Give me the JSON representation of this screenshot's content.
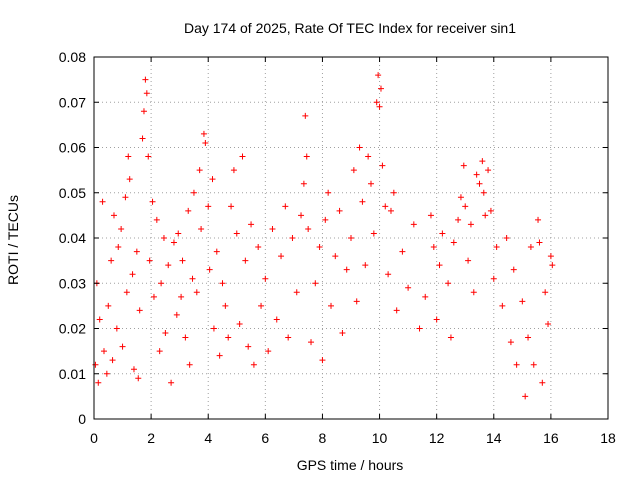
{
  "chart_data": {
    "type": "scatter",
    "title": "Day 174 of 2025, Rate Of TEC Index for receiver sin1",
    "xlabel": "GPS time / hours",
    "ylabel": "ROTI / TECUs",
    "xlim": [
      0,
      18
    ],
    "ylim": [
      0,
      0.08
    ],
    "x_ticks": [
      "0",
      "2",
      "4",
      "6",
      "8",
      "10",
      "12",
      "14",
      "16",
      "18"
    ],
    "y_ticks": [
      "0",
      "0.01",
      "0.02",
      "0.03",
      "0.04",
      "0.05",
      "0.06",
      "0.07",
      "0.08"
    ],
    "grid": true,
    "legend": "none",
    "marker": "+",
    "color": "#ff0000",
    "series": [
      {
        "points": [
          [
            0.05,
            0.012
          ],
          [
            0.1,
            0.03
          ],
          [
            0.15,
            0.008
          ],
          [
            0.2,
            0.022
          ],
          [
            0.3,
            0.048
          ],
          [
            0.35,
            0.015
          ],
          [
            0.45,
            0.01
          ],
          [
            0.5,
            0.025
          ],
          [
            0.6,
            0.035
          ],
          [
            0.65,
            0.013
          ],
          [
            0.7,
            0.045
          ],
          [
            0.8,
            0.02
          ],
          [
            0.85,
            0.038
          ],
          [
            0.95,
            0.042
          ],
          [
            1.0,
            0.016
          ],
          [
            1.1,
            0.049
          ],
          [
            1.15,
            0.028
          ],
          [
            1.2,
            0.058
          ],
          [
            1.25,
            0.053
          ],
          [
            1.35,
            0.032
          ],
          [
            1.4,
            0.011
          ],
          [
            1.5,
            0.037
          ],
          [
            1.55,
            0.009
          ],
          [
            1.6,
            0.024
          ],
          [
            1.7,
            0.062
          ],
          [
            1.75,
            0.068
          ],
          [
            1.8,
            0.075
          ],
          [
            1.85,
            0.072
          ],
          [
            1.9,
            0.058
          ],
          [
            1.95,
            0.035
          ],
          [
            2.05,
            0.048
          ],
          [
            2.1,
            0.027
          ],
          [
            2.2,
            0.044
          ],
          [
            2.3,
            0.015
          ],
          [
            2.35,
            0.03
          ],
          [
            2.45,
            0.04
          ],
          [
            2.5,
            0.019
          ],
          [
            2.6,
            0.034
          ],
          [
            2.7,
            0.008
          ],
          [
            2.8,
            0.039
          ],
          [
            2.9,
            0.023
          ],
          [
            2.95,
            0.041
          ],
          [
            3.05,
            0.027
          ],
          [
            3.1,
            0.035
          ],
          [
            3.2,
            0.018
          ],
          [
            3.3,
            0.046
          ],
          [
            3.35,
            0.012
          ],
          [
            3.45,
            0.031
          ],
          [
            3.5,
            0.05
          ],
          [
            3.6,
            0.028
          ],
          [
            3.7,
            0.055
          ],
          [
            3.75,
            0.042
          ],
          [
            3.85,
            0.063
          ],
          [
            3.9,
            0.061
          ],
          [
            4.0,
            0.047
          ],
          [
            4.05,
            0.033
          ],
          [
            4.15,
            0.053
          ],
          [
            4.2,
            0.02
          ],
          [
            4.3,
            0.037
          ],
          [
            4.4,
            0.014
          ],
          [
            4.5,
            0.03
          ],
          [
            4.6,
            0.025
          ],
          [
            4.7,
            0.018
          ],
          [
            4.8,
            0.047
          ],
          [
            4.9,
            0.055
          ],
          [
            5.0,
            0.041
          ],
          [
            5.1,
            0.021
          ],
          [
            5.2,
            0.058
          ],
          [
            5.3,
            0.035
          ],
          [
            5.4,
            0.016
          ],
          [
            5.5,
            0.043
          ],
          [
            5.6,
            0.012
          ],
          [
            5.75,
            0.038
          ],
          [
            5.85,
            0.025
          ],
          [
            6.0,
            0.031
          ],
          [
            6.1,
            0.015
          ],
          [
            6.25,
            0.042
          ],
          [
            6.4,
            0.022
          ],
          [
            6.55,
            0.036
          ],
          [
            6.7,
            0.047
          ],
          [
            6.8,
            0.018
          ],
          [
            6.95,
            0.04
          ],
          [
            7.1,
            0.028
          ],
          [
            7.25,
            0.045
          ],
          [
            7.35,
            0.052
          ],
          [
            7.4,
            0.067
          ],
          [
            7.45,
            0.058
          ],
          [
            7.5,
            0.042
          ],
          [
            7.6,
            0.017
          ],
          [
            7.75,
            0.03
          ],
          [
            7.9,
            0.038
          ],
          [
            8.0,
            0.013
          ],
          [
            8.1,
            0.044
          ],
          [
            8.2,
            0.05
          ],
          [
            8.3,
            0.025
          ],
          [
            8.45,
            0.036
          ],
          [
            8.6,
            0.046
          ],
          [
            8.7,
            0.019
          ],
          [
            8.85,
            0.033
          ],
          [
            9.0,
            0.04
          ],
          [
            9.1,
            0.055
          ],
          [
            9.2,
            0.026
          ],
          [
            9.3,
            0.06
          ],
          [
            9.4,
            0.048
          ],
          [
            9.5,
            0.034
          ],
          [
            9.6,
            0.058
          ],
          [
            9.7,
            0.052
          ],
          [
            9.8,
            0.041
          ],
          [
            9.9,
            0.07
          ],
          [
            9.95,
            0.076
          ],
          [
            10.0,
            0.069
          ],
          [
            10.05,
            0.073
          ],
          [
            10.1,
            0.056
          ],
          [
            10.2,
            0.047
          ],
          [
            10.3,
            0.032
          ],
          [
            10.4,
            0.046
          ],
          [
            10.5,
            0.05
          ],
          [
            10.6,
            0.024
          ],
          [
            10.8,
            0.037
          ],
          [
            11.0,
            0.029
          ],
          [
            11.2,
            0.043
          ],
          [
            11.4,
            0.02
          ],
          [
            11.6,
            0.027
          ],
          [
            11.8,
            0.045
          ],
          [
            11.9,
            0.038
          ],
          [
            12.0,
            0.022
          ],
          [
            12.1,
            0.034
          ],
          [
            12.2,
            0.041
          ],
          [
            12.4,
            0.03
          ],
          [
            12.5,
            0.018
          ],
          [
            12.6,
            0.039
          ],
          [
            12.75,
            0.044
          ],
          [
            12.85,
            0.049
          ],
          [
            12.95,
            0.056
          ],
          [
            13.0,
            0.047
          ],
          [
            13.1,
            0.035
          ],
          [
            13.2,
            0.043
          ],
          [
            13.3,
            0.028
          ],
          [
            13.4,
            0.054
          ],
          [
            13.5,
            0.052
          ],
          [
            13.6,
            0.057
          ],
          [
            13.65,
            0.05
          ],
          [
            13.7,
            0.045
          ],
          [
            13.8,
            0.055
          ],
          [
            13.9,
            0.046
          ],
          [
            14.0,
            0.031
          ],
          [
            14.1,
            0.038
          ],
          [
            14.3,
            0.025
          ],
          [
            14.45,
            0.04
          ],
          [
            14.6,
            0.017
          ],
          [
            14.7,
            0.033
          ],
          [
            14.8,
            0.012
          ],
          [
            15.0,
            0.026
          ],
          [
            15.1,
            0.005
          ],
          [
            15.2,
            0.018
          ],
          [
            15.3,
            0.038
          ],
          [
            15.4,
            0.012
          ],
          [
            15.55,
            0.044
          ],
          [
            15.6,
            0.039
          ],
          [
            15.7,
            0.008
          ],
          [
            15.8,
            0.028
          ],
          [
            15.9,
            0.021
          ],
          [
            16.0,
            0.036
          ],
          [
            16.05,
            0.034
          ]
        ]
      }
    ]
  }
}
